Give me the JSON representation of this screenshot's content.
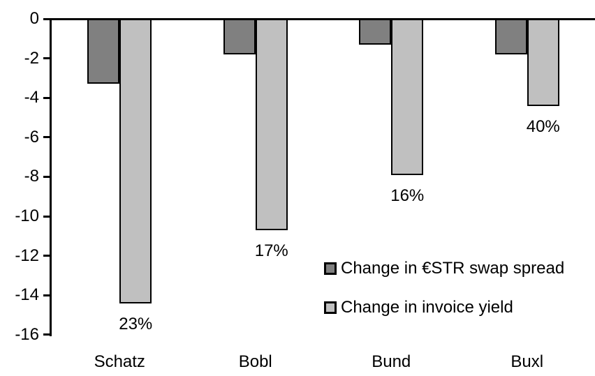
{
  "chart_data": {
    "type": "bar",
    "title": "",
    "categories": [
      "Schatz",
      "Bobl",
      "Bund",
      "Buxl"
    ],
    "series": [
      {
        "name": "Change in €STR swap spread",
        "color": "#808080",
        "values": [
          -3.3,
          -1.8,
          -1.3,
          -1.8
        ]
      },
      {
        "name": "Change in invoice yield",
        "color": "#c0c0c0",
        "values": [
          -14.4,
          -10.7,
          -7.9,
          -4.4
        ],
        "bar_labels": [
          "23%",
          "17%",
          "16%",
          "40%"
        ]
      }
    ],
    "xlabel": "",
    "ylabel": "",
    "ylim": [
      -16,
      0
    ],
    "yticks": [
      0,
      -2,
      -4,
      -6,
      -8,
      -10,
      -12,
      -14,
      -16
    ],
    "grid": false,
    "legend_position": "inside-right-middle",
    "bar_border_color": "#000000",
    "axis_color": "#000000",
    "background_color": "#ffffff"
  }
}
